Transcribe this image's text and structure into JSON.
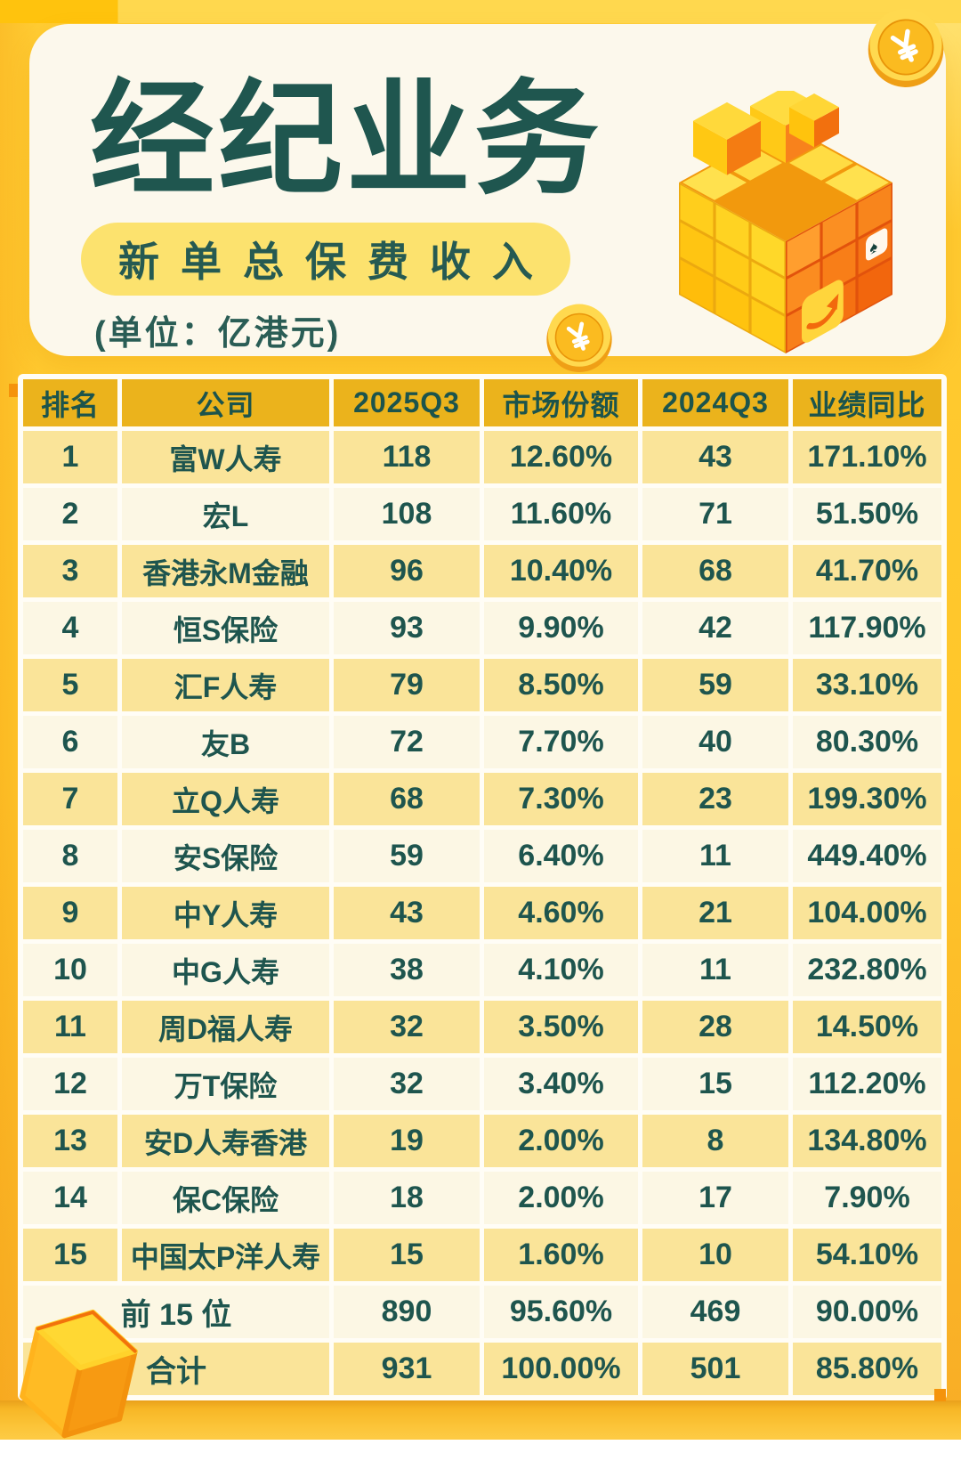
{
  "header": {
    "title": "经纪业务",
    "subtitle": "新单总保费收入",
    "unit_note": "(单位：亿港元)"
  },
  "table": {
    "columns": [
      "排名",
      "公司",
      "2025Q3",
      "市场份额",
      "2024Q3",
      "业绩同比"
    ],
    "rows": [
      [
        "1",
        "富W人寿",
        "118",
        "12.60%",
        "43",
        "171.10%"
      ],
      [
        "2",
        "宏L",
        "108",
        "11.60%",
        "71",
        "51.50%"
      ],
      [
        "3",
        "香港永M金融",
        "96",
        "10.40%",
        "68",
        "41.70%"
      ],
      [
        "4",
        "恒S保险",
        "93",
        "9.90%",
        "42",
        "117.90%"
      ],
      [
        "5",
        "汇F人寿",
        "79",
        "8.50%",
        "59",
        "33.10%"
      ],
      [
        "6",
        "友B",
        "72",
        "7.70%",
        "40",
        "80.30%"
      ],
      [
        "7",
        "立Q人寿",
        "68",
        "7.30%",
        "23",
        "199.30%"
      ],
      [
        "8",
        "安S保险",
        "59",
        "6.40%",
        "11",
        "449.40%"
      ],
      [
        "9",
        "中Y人寿",
        "43",
        "4.60%",
        "21",
        "104.00%"
      ],
      [
        "10",
        "中G人寿",
        "38",
        "4.10%",
        "11",
        "232.80%"
      ],
      [
        "11",
        "周D福人寿",
        "32",
        "3.50%",
        "28",
        "14.50%"
      ],
      [
        "12",
        "万T保险",
        "32",
        "3.40%",
        "15",
        "112.20%"
      ],
      [
        "13",
        "安D人寿香港",
        "19",
        "2.00%",
        "8",
        "134.80%"
      ],
      [
        "14",
        "保C保险",
        "18",
        "2.00%",
        "17",
        "7.90%"
      ],
      [
        "15",
        "中国太P洋人寿",
        "15",
        "1.60%",
        "10",
        "54.10%"
      ]
    ],
    "summary": [
      {
        "label": "前 15 位",
        "values": [
          "890",
          "95.60%",
          "469",
          "90.00%"
        ]
      },
      {
        "label": "合计",
        "values": [
          "931",
          "100.00%",
          "501",
          "85.80%"
        ]
      }
    ]
  },
  "chart_data": {
    "type": "table",
    "title": "经纪业务 新单总保费收入",
    "unit": "亿港元",
    "columns": [
      "排名",
      "公司",
      "2025Q3",
      "市场份额",
      "2024Q3",
      "业绩同比"
    ],
    "rows": [
      {
        "rank": 1,
        "company": "富W人寿",
        "q3_2025": 118,
        "market_share_pct": 12.6,
        "q3_2024": 43,
        "yoy_pct": 171.1
      },
      {
        "rank": 2,
        "company": "宏L",
        "q3_2025": 108,
        "market_share_pct": 11.6,
        "q3_2024": 71,
        "yoy_pct": 51.5
      },
      {
        "rank": 3,
        "company": "香港永M金融",
        "q3_2025": 96,
        "market_share_pct": 10.4,
        "q3_2024": 68,
        "yoy_pct": 41.7
      },
      {
        "rank": 4,
        "company": "恒S保险",
        "q3_2025": 93,
        "market_share_pct": 9.9,
        "q3_2024": 42,
        "yoy_pct": 117.9
      },
      {
        "rank": 5,
        "company": "汇F人寿",
        "q3_2025": 79,
        "market_share_pct": 8.5,
        "q3_2024": 59,
        "yoy_pct": 33.1
      },
      {
        "rank": 6,
        "company": "友B",
        "q3_2025": 72,
        "market_share_pct": 7.7,
        "q3_2024": 40,
        "yoy_pct": 80.3
      },
      {
        "rank": 7,
        "company": "立Q人寿",
        "q3_2025": 68,
        "market_share_pct": 7.3,
        "q3_2024": 23,
        "yoy_pct": 199.3
      },
      {
        "rank": 8,
        "company": "安S保险",
        "q3_2025": 59,
        "market_share_pct": 6.4,
        "q3_2024": 11,
        "yoy_pct": 449.4
      },
      {
        "rank": 9,
        "company": "中Y人寿",
        "q3_2025": 43,
        "market_share_pct": 4.6,
        "q3_2024": 21,
        "yoy_pct": 104.0
      },
      {
        "rank": 10,
        "company": "中G人寿",
        "q3_2025": 38,
        "market_share_pct": 4.1,
        "q3_2024": 11,
        "yoy_pct": 232.8
      },
      {
        "rank": 11,
        "company": "周D福人寿",
        "q3_2025": 32,
        "market_share_pct": 3.5,
        "q3_2024": 28,
        "yoy_pct": 14.5
      },
      {
        "rank": 12,
        "company": "万T保险",
        "q3_2025": 32,
        "market_share_pct": 3.4,
        "q3_2024": 15,
        "yoy_pct": 112.2
      },
      {
        "rank": 13,
        "company": "安D人寿香港",
        "q3_2025": 19,
        "market_share_pct": 2.0,
        "q3_2024": 8,
        "yoy_pct": 134.8
      },
      {
        "rank": 14,
        "company": "保C保险",
        "q3_2025": 18,
        "market_share_pct": 2.0,
        "q3_2024": 17,
        "yoy_pct": 7.9
      },
      {
        "rank": 15,
        "company": "中国太P洋人寿",
        "q3_2025": 15,
        "market_share_pct": 1.6,
        "q3_2024": 10,
        "yoy_pct": 54.1
      }
    ],
    "totals": [
      {
        "label": "前 15 位",
        "q3_2025": 890,
        "market_share_pct": 95.6,
        "q3_2024": 469,
        "yoy_pct": 90.0
      },
      {
        "label": "合计",
        "q3_2025": 931,
        "market_share_pct": 100.0,
        "q3_2024": 501,
        "yoy_pct": 85.8
      }
    ]
  },
  "icons": {
    "coin_top": "asterisk-coin",
    "coin_mid": "asterisk-coin",
    "rubik_cube": "rubik-cube-illustration",
    "bottom_cube": "gold-cube",
    "arrow_tile": "curved-arrow-tile",
    "spade_tile": "spade-card-tile"
  },
  "colors": {
    "background_gold": "#FFC62A",
    "card_cream": "#FCF8EC",
    "pill_yellow": "#FCE26E",
    "text_teal": "#1F564F",
    "header_gold": "#EBB31C",
    "row_yellow": "#FAE499",
    "row_cream": "#FCF7E4",
    "band_gold": "#F8BB2B",
    "notch_orange": "#F5930B"
  }
}
